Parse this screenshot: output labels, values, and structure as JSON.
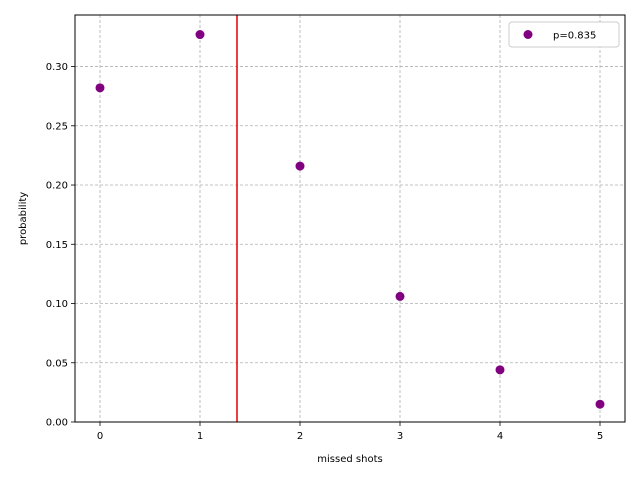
{
  "chart_data": {
    "type": "scatter",
    "title": "",
    "xlabel": "missed shots",
    "ylabel": "probability",
    "xlim": [
      -0.25,
      5.25
    ],
    "ylim": [
      0.0,
      0.3435
    ],
    "xticks": [
      0,
      1,
      2,
      3,
      4,
      5
    ],
    "xtick_labels": [
      "0",
      "1",
      "2",
      "3",
      "4",
      "5"
    ],
    "yticks": [
      0.0,
      0.05,
      0.1,
      0.15,
      0.2,
      0.25,
      0.3
    ],
    "ytick_labels": [
      "0.00",
      "0.05",
      "0.10",
      "0.15",
      "0.20",
      "0.25",
      "0.30"
    ],
    "grid": true,
    "legend_position": "top-right",
    "series": [
      {
        "name": "p=0.835",
        "color": "#800080",
        "x": [
          0,
          1,
          2,
          3,
          4,
          5
        ],
        "y": [
          0.282,
          0.327,
          0.216,
          0.106,
          0.044,
          0.015
        ]
      }
    ],
    "vertical_line": {
      "x": 1.37,
      "color": "#e00000"
    },
    "grid_color": "#b0b0b0"
  }
}
